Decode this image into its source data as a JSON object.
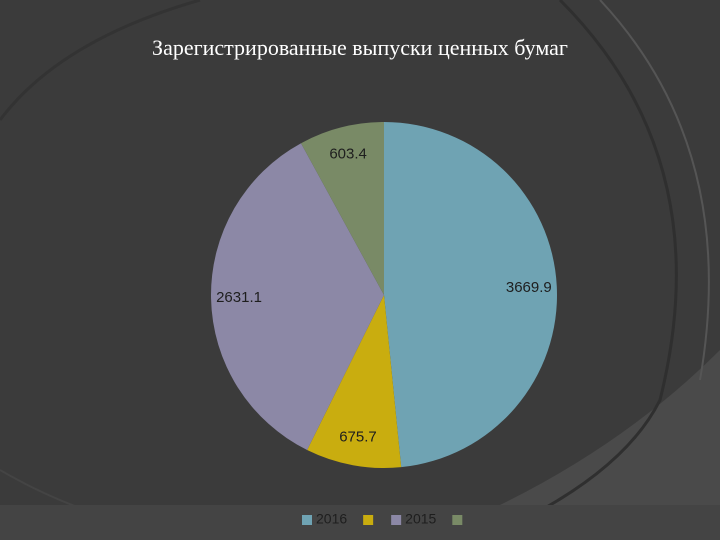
{
  "chart_data": {
    "type": "pie",
    "title": "Зарегистрированные выпуски ценных бумаг",
    "categories": [
      "2016",
      null,
      "2015",
      null
    ],
    "values": [
      3669.9,
      675.7,
      2631.1,
      603.4
    ],
    "colors": [
      "#6fa3b3",
      "#c9ad0f",
      "#8c88a6",
      "#798a66"
    ],
    "legend": "bottom"
  }
}
